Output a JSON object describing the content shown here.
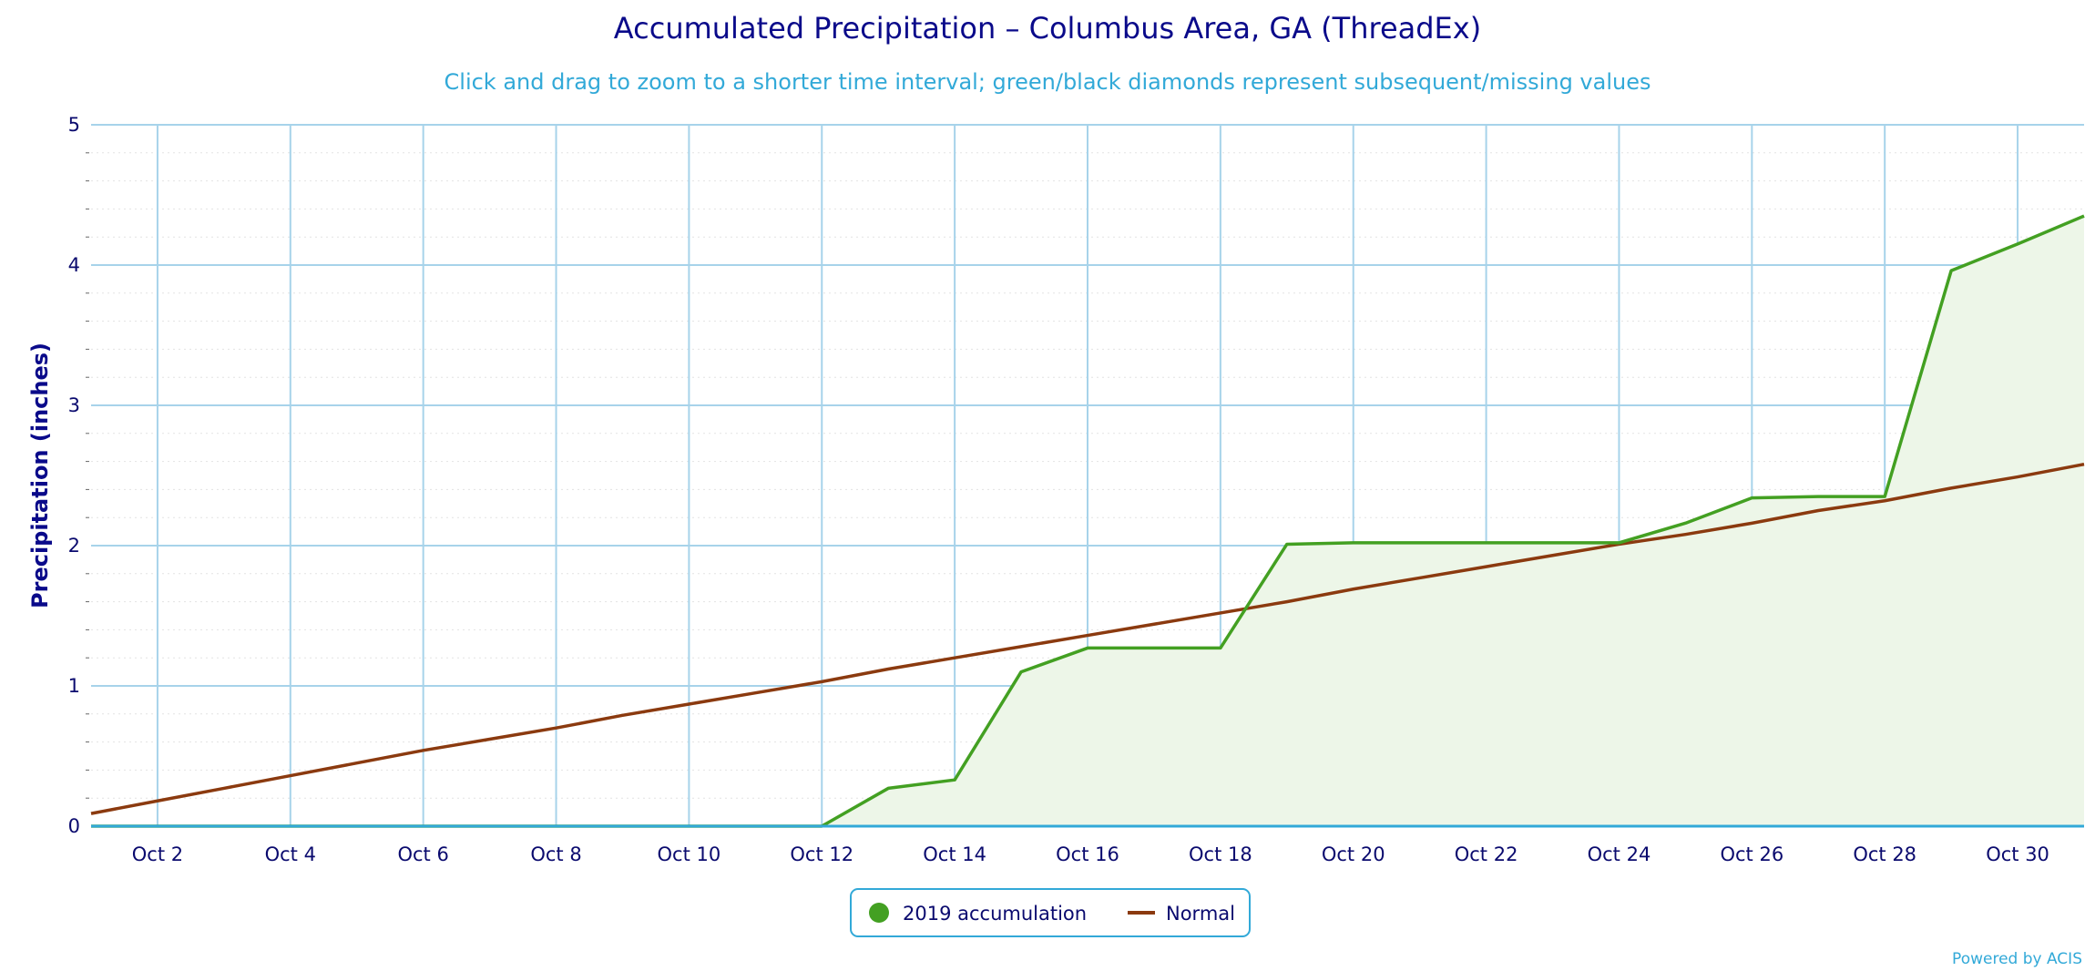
{
  "chart_data": {
    "type": "area",
    "title": "Accumulated Precipitation – Columbus Area, GA (ThreadEx)",
    "subtitle": "Click and drag to zoom to a shorter time interval; green/black diamonds represent subsequent/missing values",
    "ylabel": "Precipitation (inches)",
    "xlabel": "",
    "ylim": [
      0,
      5
    ],
    "xlim": [
      1,
      31
    ],
    "yticks": [
      0,
      1,
      2,
      3,
      4,
      5
    ],
    "xticks": [
      {
        "day": 2,
        "label": "Oct 2"
      },
      {
        "day": 4,
        "label": "Oct 4"
      },
      {
        "day": 6,
        "label": "Oct 6"
      },
      {
        "day": 8,
        "label": "Oct 8"
      },
      {
        "day": 10,
        "label": "Oct 10"
      },
      {
        "day": 12,
        "label": "Oct 12"
      },
      {
        "day": 14,
        "label": "Oct 14"
      },
      {
        "day": 16,
        "label": "Oct 16"
      },
      {
        "day": 18,
        "label": "Oct 18"
      },
      {
        "day": 20,
        "label": "Oct 20"
      },
      {
        "day": 22,
        "label": "Oct 22"
      },
      {
        "day": 24,
        "label": "Oct 24"
      },
      {
        "day": 26,
        "label": "Oct 26"
      },
      {
        "day": 28,
        "label": "Oct 28"
      },
      {
        "day": 30,
        "label": "Oct 30"
      }
    ],
    "x": [
      1,
      2,
      3,
      4,
      5,
      6,
      7,
      8,
      9,
      10,
      11,
      12,
      13,
      14,
      15,
      16,
      17,
      18,
      19,
      20,
      21,
      22,
      23,
      24,
      25,
      26,
      27,
      28,
      29,
      30,
      31
    ],
    "series": [
      {
        "name": "2019 accumulation",
        "color": "#43a022",
        "fill": "#edf6e8",
        "values": [
          0,
          0,
          0,
          0,
          0,
          0,
          0,
          0,
          0,
          0,
          0,
          0,
          0.27,
          0.33,
          1.1,
          1.27,
          1.27,
          1.27,
          2.01,
          2.02,
          2.02,
          2.02,
          2.02,
          2.02,
          2.16,
          2.34,
          2.35,
          2.35,
          3.96,
          4.15,
          4.35
        ]
      },
      {
        "name": "Normal",
        "color": "#8b3a0f",
        "values": [
          0.09,
          0.18,
          0.27,
          0.36,
          0.45,
          0.54,
          0.62,
          0.7,
          0.79,
          0.87,
          0.95,
          1.03,
          1.12,
          1.2,
          1.28,
          1.36,
          1.44,
          1.52,
          1.6,
          1.69,
          1.77,
          1.85,
          1.93,
          2.01,
          2.08,
          2.16,
          2.25,
          2.32,
          2.41,
          2.49,
          2.58
        ]
      }
    ],
    "legend": {
      "placement": "bottom-center",
      "items": [
        {
          "label": "2019 accumulation",
          "color": "#43a022",
          "marker": "circle"
        },
        {
          "label": "Normal",
          "color": "#8b3a0f",
          "marker": "line"
        }
      ]
    },
    "grid": true,
    "credit": "Powered by ACIS"
  }
}
